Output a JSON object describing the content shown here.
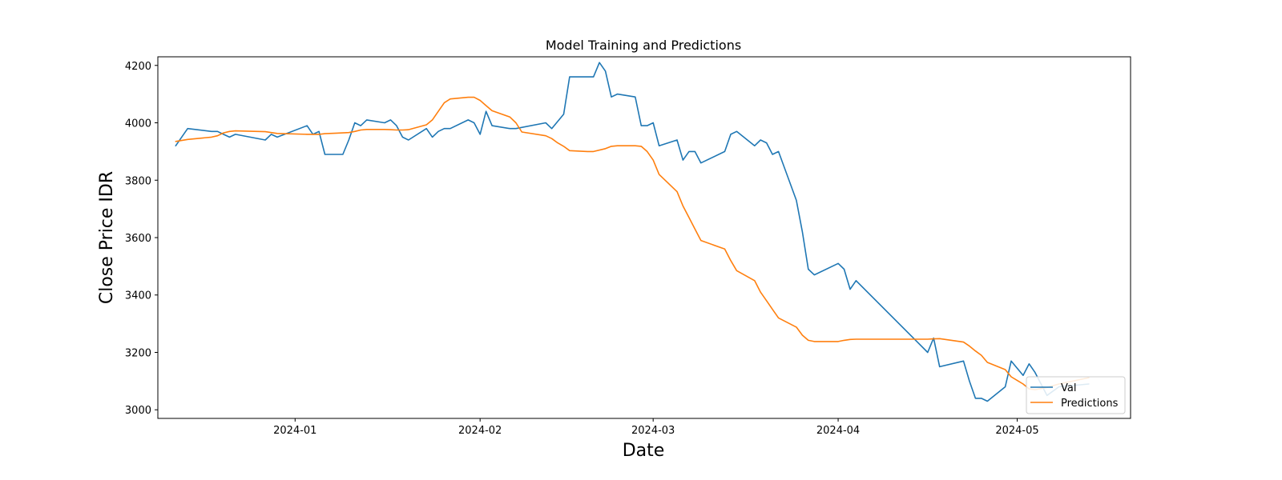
{
  "chart_data": {
    "type": "line",
    "title": "Model Training and Predictions",
    "xlabel": "Date",
    "ylabel": "Close Price IDR",
    "xlim": [
      "2023-12-09",
      "2024-05-20"
    ],
    "ylim": [
      2970,
      4230
    ],
    "x_ticks": [
      "2024-01-01",
      "2024-02-01",
      "2024-03-01",
      "2024-04-01",
      "2024-05-01"
    ],
    "x_tick_labels": [
      "2024-01",
      "2024-02",
      "2024-03",
      "2024-04",
      "2024-05"
    ],
    "y_ticks": [
      3000,
      3200,
      3400,
      3600,
      3800,
      4000,
      4200
    ],
    "y_tick_labels": [
      "3000",
      "3200",
      "3400",
      "3600",
      "3800",
      "4000",
      "4200"
    ],
    "grid": false,
    "legend": {
      "position": "lower-right"
    },
    "series": [
      {
        "name": "Val",
        "color": "#1f77b4",
        "points": [
          [
            "2023-12-12",
            3920
          ],
          [
            "2023-12-14",
            3980
          ],
          [
            "2023-12-18",
            3970
          ],
          [
            "2023-12-19",
            3970
          ],
          [
            "2023-12-20",
            3960
          ],
          [
            "2023-12-21",
            3950
          ],
          [
            "2023-12-22",
            3960
          ],
          [
            "2023-12-27",
            3940
          ],
          [
            "2023-12-28",
            3960
          ],
          [
            "2023-12-29",
            3950
          ],
          [
            "2024-01-03",
            3990
          ],
          [
            "2024-01-04",
            3960
          ],
          [
            "2024-01-05",
            3970
          ],
          [
            "2024-01-06",
            3890
          ],
          [
            "2024-01-08",
            3890
          ],
          [
            "2024-01-09",
            3890
          ],
          [
            "2024-01-10",
            3940
          ],
          [
            "2024-01-11",
            4000
          ],
          [
            "2024-01-12",
            3990
          ],
          [
            "2024-01-13",
            4010
          ],
          [
            "2024-01-16",
            4000
          ],
          [
            "2024-01-17",
            4010
          ],
          [
            "2024-01-18",
            3990
          ],
          [
            "2024-01-19",
            3950
          ],
          [
            "2024-01-20",
            3940
          ],
          [
            "2024-01-23",
            3980
          ],
          [
            "2024-01-24",
            3950
          ],
          [
            "2024-01-25",
            3970
          ],
          [
            "2024-01-26",
            3980
          ],
          [
            "2024-01-27",
            3980
          ],
          [
            "2024-01-30",
            4010
          ],
          [
            "2024-01-31",
            4000
          ],
          [
            "2024-02-01",
            3960
          ],
          [
            "2024-02-02",
            4040
          ],
          [
            "2024-02-03",
            3990
          ],
          [
            "2024-02-06",
            3980
          ],
          [
            "2024-02-07",
            3980
          ],
          [
            "2024-02-12",
            4000
          ],
          [
            "2024-02-13",
            3980
          ],
          [
            "2024-02-15",
            4030
          ],
          [
            "2024-02-16",
            4160
          ],
          [
            "2024-02-19",
            4160
          ],
          [
            "2024-02-20",
            4160
          ],
          [
            "2024-02-21",
            4210
          ],
          [
            "2024-02-22",
            4180
          ],
          [
            "2024-02-23",
            4090
          ],
          [
            "2024-02-24",
            4100
          ],
          [
            "2024-02-27",
            4090
          ],
          [
            "2024-02-28",
            3990
          ],
          [
            "2024-02-29",
            3990
          ],
          [
            "2024-03-01",
            4000
          ],
          [
            "2024-03-02",
            3920
          ],
          [
            "2024-03-05",
            3940
          ],
          [
            "2024-03-06",
            3870
          ],
          [
            "2024-03-07",
            3900
          ],
          [
            "2024-03-08",
            3900
          ],
          [
            "2024-03-09",
            3860
          ],
          [
            "2024-03-13",
            3900
          ],
          [
            "2024-03-14",
            3960
          ],
          [
            "2024-03-15",
            3970
          ],
          [
            "2024-03-18",
            3920
          ],
          [
            "2024-03-19",
            3940
          ],
          [
            "2024-03-20",
            3930
          ],
          [
            "2024-03-21",
            3890
          ],
          [
            "2024-03-22",
            3900
          ],
          [
            "2024-03-25",
            3730
          ],
          [
            "2024-03-26",
            3620
          ],
          [
            "2024-03-27",
            3490
          ],
          [
            "2024-03-28",
            3470
          ],
          [
            "2024-04-01",
            3510
          ],
          [
            "2024-04-02",
            3490
          ],
          [
            "2024-04-03",
            3420
          ],
          [
            "2024-04-04",
            3450
          ],
          [
            "2024-04-16",
            3200
          ],
          [
            "2024-04-17",
            3250
          ],
          [
            "2024-04-18",
            3150
          ],
          [
            "2024-04-22",
            3170
          ],
          [
            "2024-04-23",
            3100
          ],
          [
            "2024-04-24",
            3040
          ],
          [
            "2024-04-25",
            3040
          ],
          [
            "2024-04-26",
            3030
          ],
          [
            "2024-04-29",
            3080
          ],
          [
            "2024-04-30",
            3170
          ],
          [
            "2024-05-02",
            3120
          ],
          [
            "2024-05-03",
            3160
          ],
          [
            "2024-05-04",
            3130
          ],
          [
            "2024-05-06",
            3050
          ],
          [
            "2024-05-08",
            3080
          ],
          [
            "2024-05-13",
            3090
          ]
        ]
      },
      {
        "name": "Predictions",
        "color": "#ff7f0e",
        "points": [
          [
            "2023-12-12",
            3935
          ],
          [
            "2023-12-14",
            3942
          ],
          [
            "2023-12-18",
            3950
          ],
          [
            "2023-12-19",
            3955
          ],
          [
            "2023-12-20",
            3965
          ],
          [
            "2023-12-21",
            3970
          ],
          [
            "2023-12-22",
            3972
          ],
          [
            "2023-12-27",
            3969
          ],
          [
            "2023-12-28",
            3966
          ],
          [
            "2023-12-29",
            3963
          ],
          [
            "2024-01-03",
            3960
          ],
          [
            "2024-01-04",
            3960
          ],
          [
            "2024-01-05",
            3960
          ],
          [
            "2024-01-06",
            3962
          ],
          [
            "2024-01-08",
            3964
          ],
          [
            "2024-01-09",
            3965
          ],
          [
            "2024-01-10",
            3966
          ],
          [
            "2024-01-11",
            3970
          ],
          [
            "2024-01-12",
            3975
          ],
          [
            "2024-01-13",
            3977
          ],
          [
            "2024-01-16",
            3977
          ],
          [
            "2024-01-17",
            3976
          ],
          [
            "2024-01-18",
            3975
          ],
          [
            "2024-01-19",
            3975
          ],
          [
            "2024-01-20",
            3976
          ],
          [
            "2024-01-23",
            3993
          ],
          [
            "2024-01-24",
            4010
          ],
          [
            "2024-01-25",
            4040
          ],
          [
            "2024-01-26",
            4070
          ],
          [
            "2024-01-27",
            4083
          ],
          [
            "2024-01-30",
            4089
          ],
          [
            "2024-01-31",
            4089
          ],
          [
            "2024-02-01",
            4078
          ],
          [
            "2024-02-02",
            4060
          ],
          [
            "2024-02-03",
            4042
          ],
          [
            "2024-02-06",
            4020
          ],
          [
            "2024-02-07",
            4000
          ],
          [
            "2024-02-08",
            3968
          ],
          [
            "2024-02-12",
            3955
          ],
          [
            "2024-02-13",
            3945
          ],
          [
            "2024-02-14",
            3930
          ],
          [
            "2024-02-15",
            3918
          ],
          [
            "2024-02-16",
            3903
          ],
          [
            "2024-02-19",
            3900
          ],
          [
            "2024-02-20",
            3900
          ],
          [
            "2024-02-22",
            3910
          ],
          [
            "2024-02-23",
            3918
          ],
          [
            "2024-02-24",
            3920
          ],
          [
            "2024-02-27",
            3920
          ],
          [
            "2024-02-28",
            3918
          ],
          [
            "2024-02-29",
            3900
          ],
          [
            "2024-03-01",
            3870
          ],
          [
            "2024-03-02",
            3820
          ],
          [
            "2024-03-05",
            3760
          ],
          [
            "2024-03-06",
            3710
          ],
          [
            "2024-03-07",
            3670
          ],
          [
            "2024-03-08",
            3630
          ],
          [
            "2024-03-09",
            3590
          ],
          [
            "2024-03-13",
            3560
          ],
          [
            "2024-03-14",
            3520
          ],
          [
            "2024-03-15",
            3485
          ],
          [
            "2024-03-18",
            3450
          ],
          [
            "2024-03-19",
            3410
          ],
          [
            "2024-03-20",
            3380
          ],
          [
            "2024-03-21",
            3350
          ],
          [
            "2024-03-22",
            3320
          ],
          [
            "2024-03-25",
            3288
          ],
          [
            "2024-03-26",
            3260
          ],
          [
            "2024-03-27",
            3242
          ],
          [
            "2024-03-28",
            3238
          ],
          [
            "2024-04-01",
            3238
          ],
          [
            "2024-04-02",
            3242
          ],
          [
            "2024-04-03",
            3245
          ],
          [
            "2024-04-04",
            3246
          ],
          [
            "2024-04-16",
            3246
          ],
          [
            "2024-04-17",
            3247
          ],
          [
            "2024-04-18",
            3248
          ],
          [
            "2024-04-22",
            3236
          ],
          [
            "2024-04-23",
            3222
          ],
          [
            "2024-04-24",
            3205
          ],
          [
            "2024-04-25",
            3190
          ],
          [
            "2024-04-26",
            3165
          ],
          [
            "2024-04-29",
            3140
          ],
          [
            "2024-04-30",
            3115
          ],
          [
            "2024-05-02",
            3090
          ],
          [
            "2024-05-03",
            3073
          ],
          [
            "2024-05-04",
            3070
          ],
          [
            "2024-05-06",
            3078
          ],
          [
            "2024-05-08",
            3090
          ],
          [
            "2024-05-13",
            3112
          ]
        ]
      }
    ]
  }
}
